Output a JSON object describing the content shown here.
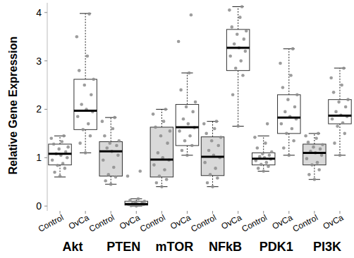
{
  "chart_data": {
    "type": "box",
    "y_label": "Relative Gene Expression",
    "categories": [
      "Control",
      "OvCa",
      "Control",
      "OvCa",
      "Control",
      "OvCa",
      "Control",
      "OvCa",
      "Control",
      "OvCa",
      "Control",
      "OvCa"
    ],
    "group_labels": [
      "Akt",
      "PTEN",
      "mTOR",
      "NFkB",
      "PDK1",
      "PI3K"
    ],
    "ylim": [
      -0.1,
      4.2
    ],
    "yticks": [
      0,
      1,
      2,
      3,
      4
    ],
    "grid": false,
    "boxes": [
      {
        "whisker_low": 0.6,
        "q1": 0.85,
        "median": 1.08,
        "q3": 1.28,
        "whisker_high": 1.45,
        "color": "#ffffff",
        "points": [
          0.62,
          0.7,
          0.78,
          0.84,
          0.88,
          0.95,
          1.0,
          1.05,
          1.08,
          1.12,
          1.18,
          1.22,
          1.28,
          1.33,
          1.4,
          1.45
        ]
      },
      {
        "whisker_low": 1.1,
        "q1": 1.58,
        "median": 1.97,
        "q3": 2.62,
        "whisker_high": 3.98,
        "color": "#ffffff",
        "points": [
          1.1,
          1.3,
          1.45,
          1.58,
          1.7,
          1.85,
          1.95,
          2.0,
          2.1,
          2.3,
          2.5,
          2.62,
          2.8,
          3.1,
          3.5,
          3.97
        ]
      },
      {
        "whisker_low": 0.45,
        "q1": 0.62,
        "median": 1.13,
        "q3": 1.33,
        "whisker_high": 1.83,
        "color": "#d9d9d9",
        "points": [
          0.45,
          0.52,
          0.6,
          0.65,
          0.8,
          0.95,
          1.05,
          1.13,
          1.2,
          1.25,
          1.3,
          1.35,
          1.45,
          1.6,
          1.75,
          1.83
        ]
      },
      {
        "whisker_low": 0.0,
        "q1": 0.02,
        "median": 0.04,
        "q3": 0.1,
        "whisker_high": 0.15,
        "color": "#ffffff",
        "points": [
          0.0,
          0.01,
          0.02,
          0.02,
          0.02,
          0.03,
          0.03,
          0.04,
          0.05,
          0.06,
          0.08,
          0.1,
          0.12,
          0.15,
          0.62,
          0.72
        ]
      },
      {
        "whisker_low": 0.4,
        "q1": 0.6,
        "median": 0.96,
        "q3": 1.63,
        "whisker_high": 2.0,
        "color": "#d9d9d9",
        "points": [
          0.4,
          0.48,
          0.55,
          0.62,
          0.75,
          0.85,
          0.95,
          1.0,
          1.1,
          1.3,
          1.45,
          1.55,
          1.63,
          1.75,
          1.9,
          2.0
        ]
      },
      {
        "whisker_low": 1.05,
        "q1": 1.25,
        "median": 1.63,
        "q3": 2.1,
        "whisker_high": 2.75,
        "color": "#ffffff",
        "points": [
          1.05,
          1.15,
          1.25,
          1.35,
          1.45,
          1.55,
          1.62,
          1.7,
          1.8,
          1.95,
          2.05,
          2.15,
          2.4,
          2.75,
          3.4,
          3.95
        ]
      },
      {
        "whisker_low": 0.4,
        "q1": 0.63,
        "median": 1.02,
        "q3": 1.43,
        "whisker_high": 1.75,
        "color": "#d9d9d9",
        "points": [
          0.4,
          0.48,
          0.58,
          0.65,
          0.78,
          0.9,
          1.0,
          1.05,
          1.15,
          1.25,
          1.35,
          1.42,
          1.5,
          1.6,
          1.7,
          1.75
        ]
      },
      {
        "whisker_low": 1.65,
        "q1": 2.8,
        "median": 3.27,
        "q3": 3.65,
        "whisker_high": 4.12,
        "color": "#ffffff",
        "points": [
          1.65,
          2.3,
          2.7,
          2.85,
          3.0,
          3.1,
          3.2,
          3.27,
          3.35,
          3.45,
          3.55,
          3.62,
          3.7,
          3.9,
          4.05,
          4.12
        ]
      },
      {
        "whisker_low": 0.72,
        "q1": 0.85,
        "median": 0.98,
        "q3": 1.1,
        "whisker_high": 1.45,
        "color": "#ffffff",
        "points": [
          0.72,
          0.78,
          0.82,
          0.86,
          0.9,
          0.94,
          0.97,
          1.0,
          1.02,
          1.05,
          1.08,
          1.12,
          1.2,
          1.3,
          1.42,
          1.7
        ]
      },
      {
        "whisker_low": 1.05,
        "q1": 1.5,
        "median": 1.83,
        "q3": 2.3,
        "whisker_high": 3.25,
        "color": "#ffffff",
        "points": [
          1.05,
          1.2,
          1.35,
          1.5,
          1.6,
          1.7,
          1.8,
          1.85,
          1.95,
          2.05,
          2.2,
          2.3,
          2.45,
          2.7,
          2.95,
          3.25
        ]
      },
      {
        "whisker_low": 0.55,
        "q1": 0.85,
        "median": 1.1,
        "q3": 1.28,
        "whisker_high": 1.5,
        "color": "#d9d9d9",
        "points": [
          0.55,
          0.65,
          0.75,
          0.85,
          0.9,
          0.98,
          1.05,
          1.1,
          1.13,
          1.18,
          1.22,
          1.27,
          1.32,
          1.4,
          1.45,
          1.5
        ]
      },
      {
        "whisker_low": 1.05,
        "q1": 1.7,
        "median": 1.87,
        "q3": 2.2,
        "whisker_high": 2.85,
        "color": "#ffffff",
        "points": [
          1.05,
          1.3,
          1.5,
          1.65,
          1.72,
          1.8,
          1.85,
          1.88,
          1.95,
          2.05,
          2.15,
          2.2,
          2.35,
          2.5,
          2.65,
          2.85
        ]
      }
    ]
  }
}
